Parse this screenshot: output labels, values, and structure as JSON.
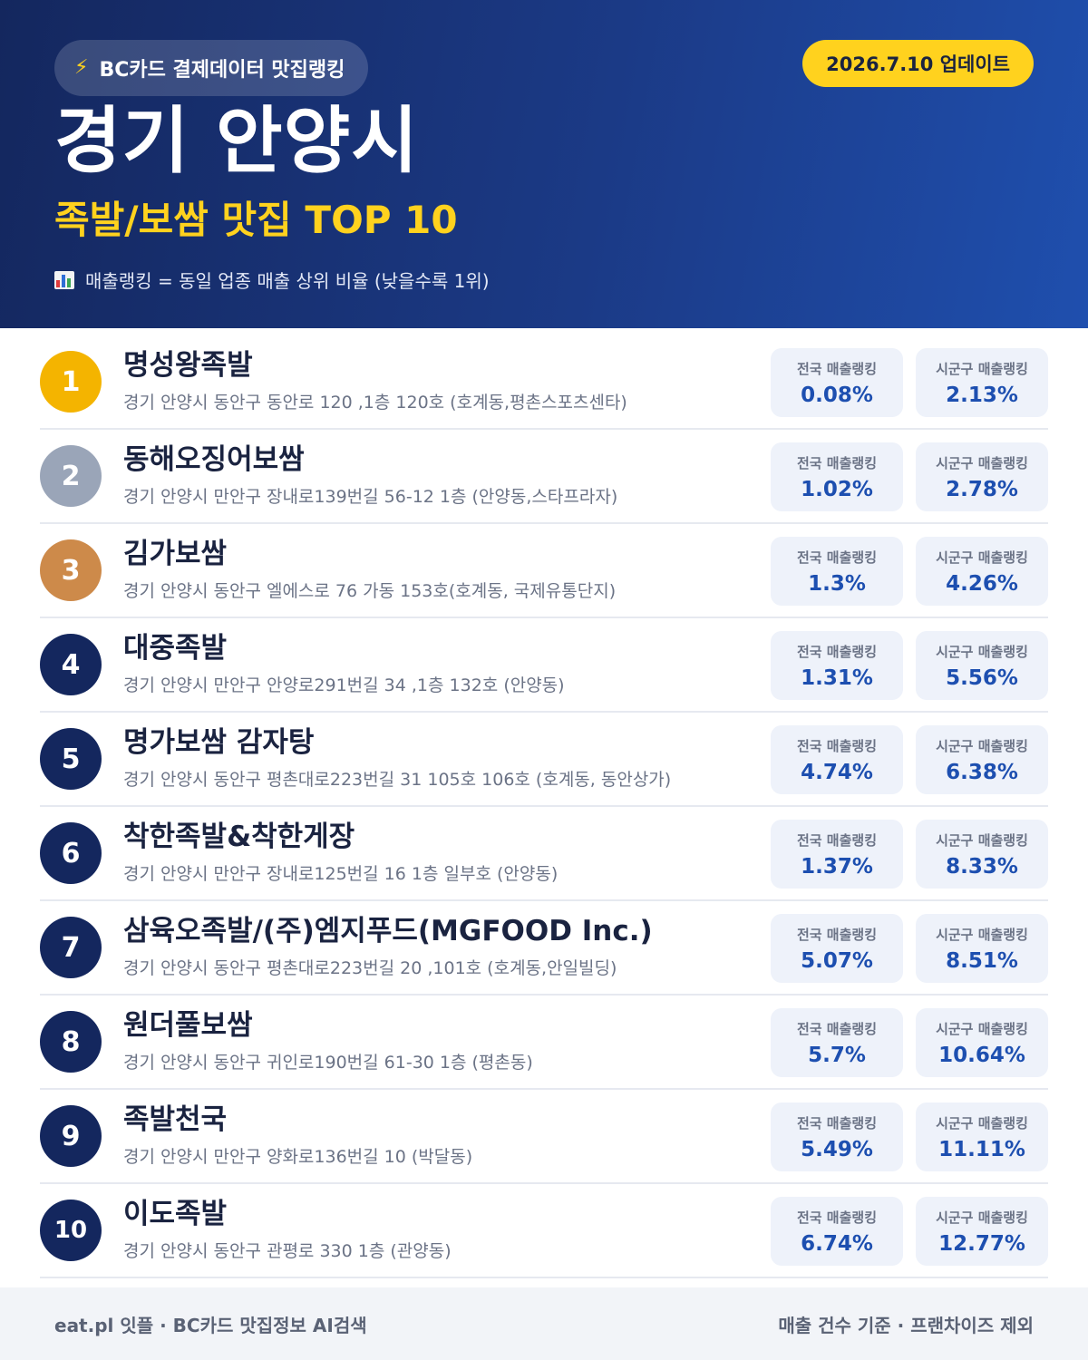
{
  "header": {
    "source_label": "BC카드 결제데이터 맛집랭킹",
    "update_label": "2026.7.10 업데이트",
    "city": "경기 안양시",
    "subtitle": "족발/보쌈 맛집 TOP 10",
    "note": "매출랭킹 = 동일 업종 매출 상위 비율 (낮을수록 1위)",
    "icons": {
      "source": "lightning-bolt-icon",
      "note": "bar-chart-icon"
    },
    "colors": {
      "accent": "#ffd21e",
      "header_bg": "#1b3a86"
    }
  },
  "labels": {
    "national": "전국 매출랭킹",
    "district": "시군구 매출랭킹"
  },
  "restaurants": [
    {
      "rank": "1",
      "name": "명성왕족발",
      "address": "경기 안양시 동안구 동안로 120 ,1층 120호 (호계동,평촌스포츠센타)",
      "national": "0.08%",
      "district": "2.13%"
    },
    {
      "rank": "2",
      "name": "동해오징어보쌈",
      "address": "경기 안양시 만안구 장내로139번길 56-12 1층 (안양동,스타프라자)",
      "national": "1.02%",
      "district": "2.78%"
    },
    {
      "rank": "3",
      "name": "김가보쌈",
      "address": "경기 안양시 동안구 엘에스로 76 가동 153호(호계동, 국제유통단지)",
      "national": "1.3%",
      "district": "4.26%"
    },
    {
      "rank": "4",
      "name": "대중족발",
      "address": "경기 안양시 만안구 안양로291번길 34 ,1층 132호 (안양동)",
      "national": "1.31%",
      "district": "5.56%"
    },
    {
      "rank": "5",
      "name": "명가보쌈 감자탕",
      "address": "경기 안양시 동안구 평촌대로223번길 31 105호 106호 (호계동, 동안상가)",
      "national": "4.74%",
      "district": "6.38%"
    },
    {
      "rank": "6",
      "name": "착한족발&착한게장",
      "address": "경기 안양시 만안구 장내로125번길 16 1층 일부호 (안양동)",
      "national": "1.37%",
      "district": "8.33%"
    },
    {
      "rank": "7",
      "name": "삼육오족발/(주)엠지푸드(MGFOOD Inc.)",
      "address": "경기 안양시 동안구 평촌대로223번길 20 ,101호 (호계동,안일빌딩)",
      "national": "5.07%",
      "district": "8.51%"
    },
    {
      "rank": "8",
      "name": "원더풀보쌈",
      "address": "경기 안양시 동안구 귀인로190번길 61-30 1층 (평촌동)",
      "national": "5.7%",
      "district": "10.64%"
    },
    {
      "rank": "9",
      "name": "족발천국",
      "address": "경기 안양시 만안구 양화로136번길 10 (박달동)",
      "national": "5.49%",
      "district": "11.11%"
    },
    {
      "rank": "10",
      "name": "이도족발",
      "address": "경기 안양시 동안구 관평로 330 1층 (관양동)",
      "national": "6.74%",
      "district": "12.77%"
    }
  ],
  "footer": {
    "left": "eat.pl 잇플 · BC카드 맛집정보 AI검색",
    "right": "매출 건수 기준 · 프랜차이즈 제외"
  }
}
